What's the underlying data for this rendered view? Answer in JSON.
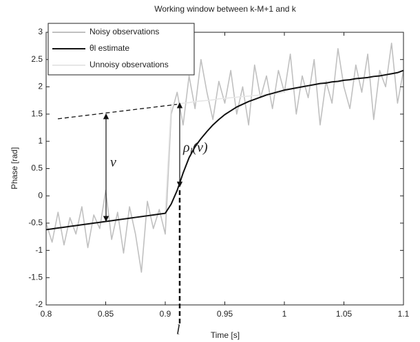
{
  "chart_data": {
    "type": "line",
    "title": "Working window between k-M+1 and k",
    "xlabel": "Time [s]",
    "ylabel": "Phase [rad]",
    "x": [
      0.8,
      0.805,
      0.81,
      0.815,
      0.82,
      0.825,
      0.83,
      0.835,
      0.84,
      0.845,
      0.85,
      0.855,
      0.86,
      0.865,
      0.87,
      0.875,
      0.88,
      0.885,
      0.89,
      0.895,
      0.9,
      0.905,
      0.91,
      0.915,
      0.92,
      0.925,
      0.93,
      0.935,
      0.94,
      0.945,
      0.95,
      0.955,
      0.96,
      0.965,
      0.97,
      0.975,
      0.98,
      0.985,
      0.99,
      0.995,
      1.0,
      1.005,
      1.01,
      1.015,
      1.02,
      1.025,
      1.03,
      1.035,
      1.04,
      1.045,
      1.05,
      1.055,
      1.06,
      1.065,
      1.07,
      1.075,
      1.08,
      1.085,
      1.09,
      1.095,
      1.1
    ],
    "series": [
      {
        "name": "Noisy observations",
        "color": "#c0c0c0",
        "values": [
          -0.5,
          -0.85,
          -0.3,
          -0.9,
          -0.4,
          -0.7,
          -0.2,
          -0.95,
          -0.35,
          -0.6,
          0.1,
          -0.8,
          -0.3,
          -1.05,
          -0.2,
          -0.7,
          -1.4,
          -0.1,
          -0.6,
          -0.25,
          -0.7,
          1.5,
          1.9,
          1.3,
          2.2,
          1.6,
          2.5,
          1.9,
          1.4,
          2.1,
          1.7,
          2.3,
          1.5,
          2.0,
          1.3,
          2.4,
          1.8,
          2.2,
          1.6,
          2.3,
          1.9,
          2.6,
          1.5,
          2.2,
          1.8,
          2.5,
          1.3,
          2.1,
          1.7,
          2.7,
          2.0,
          1.6,
          2.4,
          1.9,
          2.6,
          1.4,
          2.3,
          2.0,
          2.8,
          1.7,
          2.3
        ]
      },
      {
        "name": "Unnoisy observations",
        "color": "#e6e6e6",
        "values": [
          -0.62,
          -0.605,
          -0.59,
          -0.575,
          -0.56,
          -0.545,
          -0.53,
          -0.515,
          -0.5,
          -0.485,
          -0.47,
          -0.455,
          -0.44,
          -0.425,
          -0.41,
          -0.395,
          -0.38,
          -0.365,
          -0.35,
          -0.335,
          -0.32,
          1.67,
          1.68,
          1.7,
          1.71,
          1.73,
          1.74,
          1.75,
          1.76,
          1.78,
          1.79,
          1.8,
          1.81,
          1.82,
          1.83,
          1.84,
          1.85,
          1.86,
          1.87,
          1.88,
          1.91,
          1.96,
          1.98,
          2.0,
          2.02,
          2.04,
          2.06,
          2.07,
          2.09,
          2.1,
          2.12,
          2.13,
          2.15,
          2.16,
          2.17,
          2.19,
          2.2,
          2.22,
          2.24,
          2.26,
          2.3
        ]
      },
      {
        "name": "θl estimate",
        "color": "#111111",
        "values": [
          -0.62,
          -0.605,
          -0.59,
          -0.575,
          -0.56,
          -0.545,
          -0.53,
          -0.515,
          -0.5,
          -0.485,
          -0.47,
          -0.455,
          -0.44,
          -0.425,
          -0.41,
          -0.395,
          -0.38,
          -0.365,
          -0.35,
          -0.335,
          -0.32,
          -0.15,
          0.1,
          0.42,
          0.7,
          0.9,
          1.05,
          1.18,
          1.3,
          1.4,
          1.49,
          1.56,
          1.63,
          1.68,
          1.73,
          1.77,
          1.81,
          1.85,
          1.88,
          1.91,
          1.94,
          1.96,
          1.98,
          2.0,
          2.02,
          2.04,
          2.06,
          2.07,
          2.09,
          2.1,
          2.12,
          2.13,
          2.15,
          2.16,
          2.17,
          2.19,
          2.2,
          2.22,
          2.24,
          2.26,
          2.3
        ]
      }
    ],
    "legend_order": [
      0,
      2,
      1
    ],
    "legend": "upper left",
    "xlim": [
      0.8,
      1.1
    ],
    "ylim": [
      -2,
      3
    ],
    "xticks": [
      0.8,
      0.85,
      0.9,
      0.95,
      {
        "value": 1.0,
        "label": "1"
      },
      1.05,
      1.1
    ],
    "yticks": [
      -2,
      -1.5,
      -1,
      -0.5,
      0,
      0.5,
      1,
      1.5,
      2,
      2.5,
      3
    ],
    "grid": false,
    "annotations": [
      "ν",
      "ρ",
      "l",
      "(ν)",
      "l"
    ]
  }
}
